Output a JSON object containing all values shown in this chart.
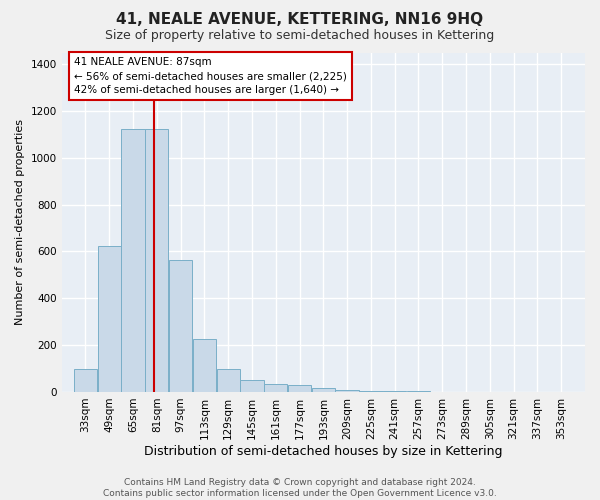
{
  "title": "41, NEALE AVENUE, KETTERING, NN16 9HQ",
  "subtitle": "Size of property relative to semi-detached houses in Kettering",
  "xlabel": "Distribution of semi-detached houses by size in Kettering",
  "ylabel": "Number of semi-detached properties",
  "footer": "Contains HM Land Registry data © Crown copyright and database right 2024.\nContains public sector information licensed under the Open Government Licence v3.0.",
  "bin_labels": [
    "33sqm",
    "49sqm",
    "65sqm",
    "81sqm",
    "97sqm",
    "113sqm",
    "129sqm",
    "145sqm",
    "161sqm",
    "177sqm",
    "193sqm",
    "209sqm",
    "225sqm",
    "241sqm",
    "257sqm",
    "273sqm",
    "289sqm",
    "305sqm",
    "321sqm",
    "337sqm",
    "353sqm"
  ],
  "bin_edges": [
    33,
    49,
    65,
    81,
    97,
    113,
    129,
    145,
    161,
    177,
    193,
    209,
    225,
    241,
    257,
    273,
    289,
    305,
    321,
    337,
    353
  ],
  "bar_values": [
    100,
    625,
    1125,
    1125,
    565,
    225,
    100,
    50,
    35,
    30,
    15,
    10,
    5,
    3,
    2,
    1,
    1,
    0,
    0,
    0
  ],
  "bar_color": "#c9d9e8",
  "bar_edge_color": "#7aafc8",
  "property_size": 87,
  "red_line_color": "#cc0000",
  "annotation_text": "41 NEALE AVENUE: 87sqm\n← 56% of semi-detached houses are smaller (2,225)\n42% of semi-detached houses are larger (1,640) →",
  "annotation_box_color": "#cc0000",
  "ylim": [
    0,
    1450
  ],
  "yticks": [
    0,
    200,
    400,
    600,
    800,
    1000,
    1200,
    1400
  ],
  "background_color": "#e8eef5",
  "figure_color": "#f0f0f0",
  "grid_color": "#ffffff",
  "title_fontsize": 11,
  "subtitle_fontsize": 9,
  "xlabel_fontsize": 9,
  "ylabel_fontsize": 8,
  "tick_fontsize": 7.5,
  "annotation_fontsize": 7.5,
  "footer_fontsize": 6.5
}
